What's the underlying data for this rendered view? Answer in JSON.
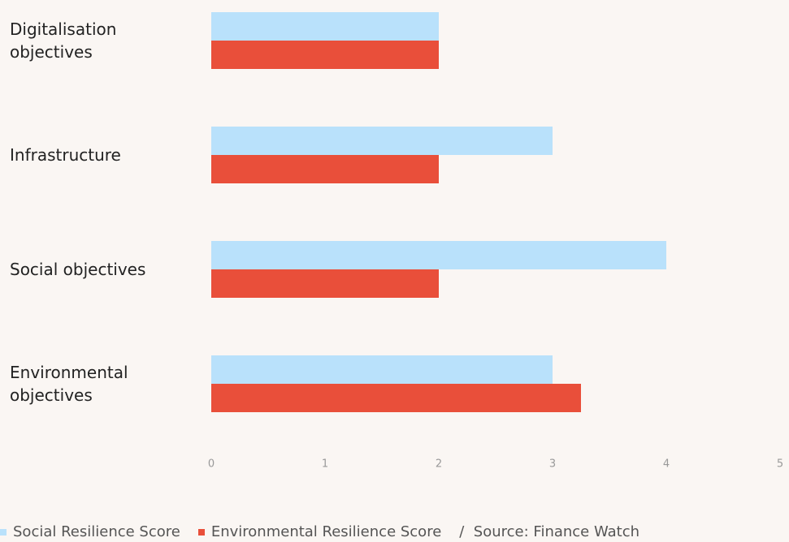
{
  "chart_data": {
    "type": "bar",
    "orientation": "horizontal",
    "categories": [
      "Digitalisation objectives",
      "Infrastructure",
      "Social objectives",
      "Environmental objectives"
    ],
    "series": [
      {
        "name": "Social Resilience Score",
        "color": "#b9e1fb",
        "values": [
          2,
          3,
          4,
          3
        ]
      },
      {
        "name": "Environmental Resilience Score",
        "color": "#e94f3a",
        "values": [
          2,
          2,
          2,
          3.25
        ]
      }
    ],
    "xlim": [
      0,
      5
    ],
    "xticks": [
      0,
      1,
      2,
      3,
      4,
      5
    ],
    "grid": false,
    "legend": "bottom",
    "source": "/  Source: Finance Watch"
  }
}
